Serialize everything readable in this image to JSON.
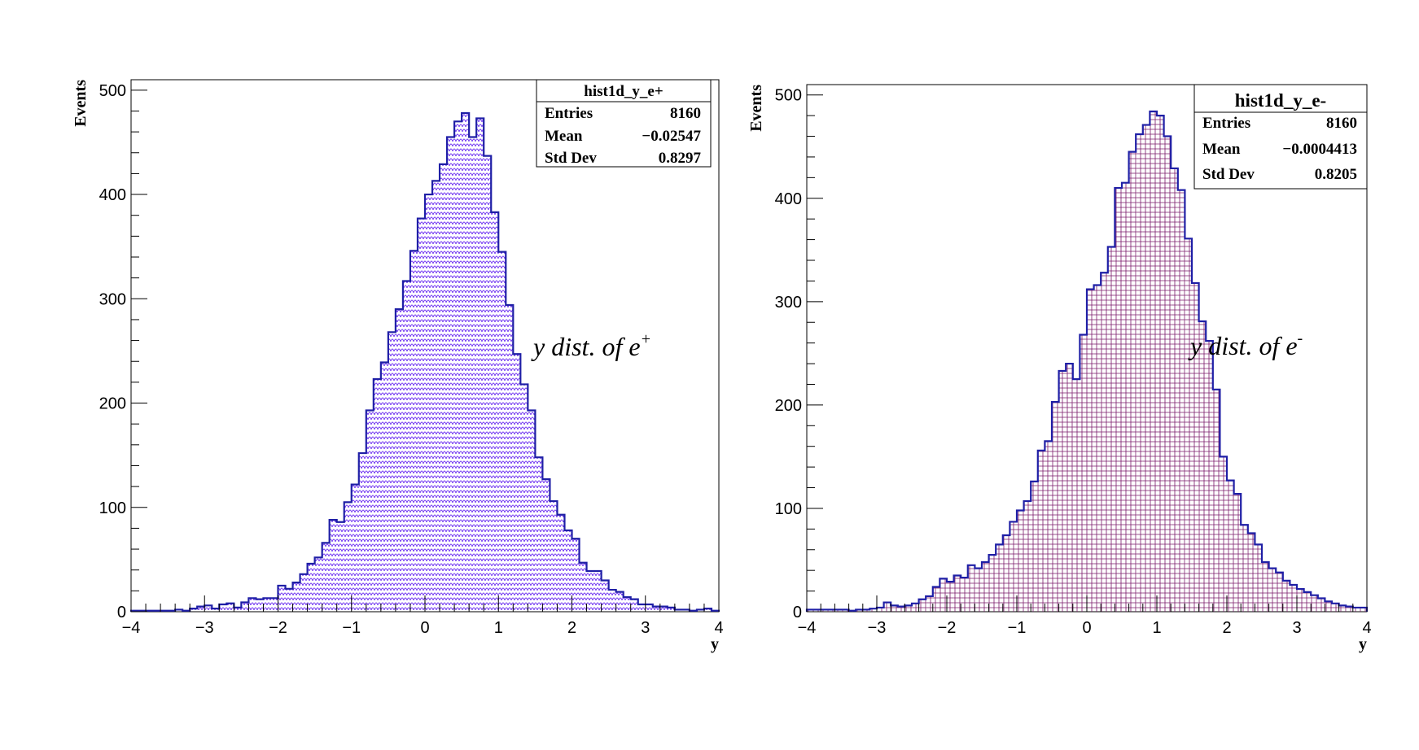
{
  "chart_data": [
    {
      "type": "bar",
      "subtype": "histogram",
      "hist_name": "hist1d_y_e+",
      "xlabel": "y",
      "ylabel": "Events",
      "xlim": [
        -4,
        4
      ],
      "ylim": [
        0,
        510
      ],
      "xticks": [
        -4,
        -3,
        -2,
        -1,
        0,
        1,
        2,
        3,
        4
      ],
      "yticks": [
        0,
        100,
        200,
        300,
        400,
        500
      ],
      "tick_labels_x": [
        "−4",
        "−3",
        "−2",
        "−1",
        "0",
        "1",
        "2",
        "3",
        "4"
      ],
      "tick_labels_y": [
        "0",
        "100",
        "200",
        "300",
        "400",
        "500"
      ],
      "bin_edges_range": [
        -4,
        4
      ],
      "nbins": 80,
      "values": [
        1,
        1,
        1,
        1,
        1,
        1,
        2,
        1,
        3,
        5,
        6,
        3,
        7,
        8,
        4,
        9,
        13,
        12,
        13,
        13,
        25,
        22,
        28,
        36,
        46,
        52,
        66,
        88,
        86,
        105,
        122,
        152,
        193,
        223,
        239,
        268,
        290,
        317,
        346,
        377,
        400,
        413,
        429,
        455,
        470,
        478,
        455,
        473,
        437,
        383,
        345,
        294,
        247,
        218,
        193,
        148,
        127,
        106,
        93,
        78,
        70,
        47,
        39,
        39,
        30,
        21,
        19,
        14,
        12,
        7,
        7,
        5,
        5,
        4,
        2,
        2,
        1,
        2,
        3,
        1
      ],
      "fill_color": "#6a2cf0",
      "line_color": "#1f1fa6",
      "stats": {
        "title": "hist1d_y_e+",
        "rows": [
          {
            "label": "Entries",
            "value": "8160"
          },
          {
            "label": "Mean",
            "value": "−0.02547"
          },
          {
            "label": "Std Dev",
            "value": "0.8297"
          }
        ]
      },
      "annotation": {
        "text": "y dist. of e",
        "sup": "+"
      }
    },
    {
      "type": "bar",
      "subtype": "histogram",
      "hist_name": "hist1d_y_e-",
      "xlabel": "y",
      "ylabel": "Events",
      "xlim": [
        -4,
        4
      ],
      "ylim": [
        0,
        510
      ],
      "xticks": [
        -4,
        -3,
        -2,
        -1,
        0,
        1,
        2,
        3,
        4
      ],
      "yticks": [
        0,
        100,
        200,
        300,
        400,
        500
      ],
      "tick_labels_x": [
        "−4",
        "−3",
        "−2",
        "−1",
        "0",
        "1",
        "2",
        "3",
        "4"
      ],
      "tick_labels_y": [
        "0",
        "100",
        "200",
        "300",
        "400",
        "500"
      ],
      "bin_edges_range": [
        -4,
        4
      ],
      "nbins": 80,
      "values": [
        2,
        2,
        2,
        2,
        2,
        2,
        1,
        2,
        2,
        3,
        4,
        9,
        6,
        5,
        6,
        8,
        12,
        15,
        24,
        32,
        29,
        35,
        33,
        45,
        42,
        48,
        55,
        65,
        74,
        87,
        98,
        107,
        126,
        156,
        165,
        203,
        233,
        240,
        225,
        268,
        312,
        316,
        328,
        353,
        410,
        415,
        445,
        462,
        471,
        484,
        480,
        460,
        429,
        408,
        361,
        318,
        281,
        262,
        215,
        150,
        127,
        114,
        84,
        76,
        65,
        48,
        42,
        38,
        30,
        26,
        22,
        19,
        16,
        13,
        10,
        8,
        6,
        5,
        4,
        4
      ],
      "fill_color": "#7a1a6a",
      "line_color": "#1f1fa6",
      "stats": {
        "title": "hist1d_y_e-",
        "rows": [
          {
            "label": "Entries",
            "value": "8160"
          },
          {
            "label": "Mean",
            "value": "−0.0004413"
          },
          {
            "label": "Std Dev",
            "value": "0.8205"
          }
        ]
      },
      "annotation": {
        "text": "y dist. of e",
        "sup": "-"
      }
    }
  ]
}
